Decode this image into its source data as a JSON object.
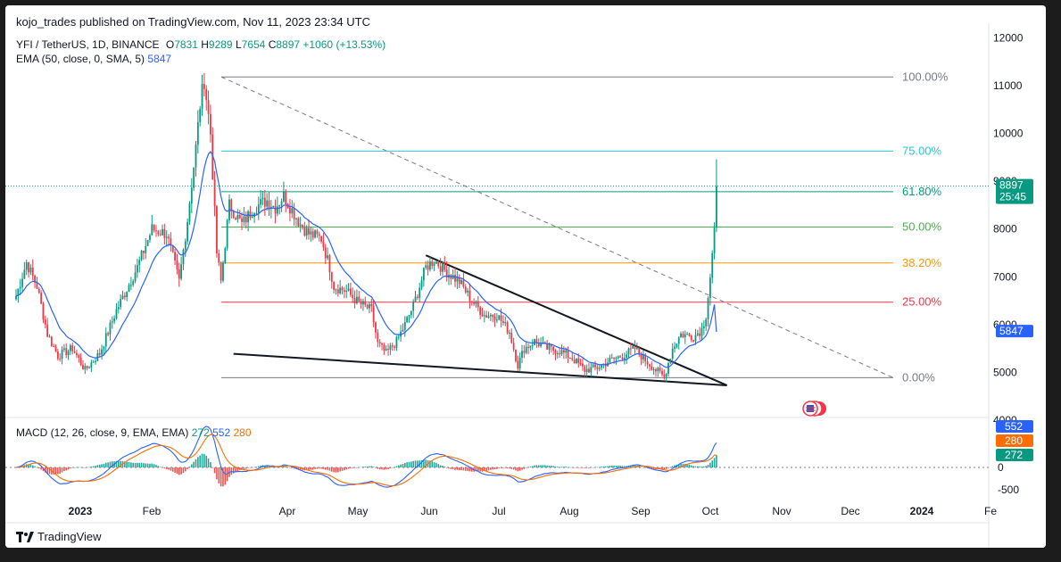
{
  "header": {
    "published": "kojo_trades published on TradingView.com, Nov 11, 2023 23:34 UTC"
  },
  "legend": {
    "symbol": "YFI / TetherUS, 1D, BINANCE",
    "o_label": "O",
    "o": "7831",
    "h_label": "H",
    "h": "9289",
    "l_label": "L",
    "l": "7654",
    "c_label": "C",
    "c": "8897",
    "change": "+1060 (+13.53%)",
    "ema_label": "EMA (50, close, 0, SMA, 5)",
    "ema_value": "5847"
  },
  "macd_legend": {
    "label": "MACD (12, 26, close, 9, EMA, EMA)",
    "hist": "272",
    "macd": "552",
    "signal": "280"
  },
  "brand": "TradingView",
  "colors": {
    "up": "#089981",
    "down": "#f23645",
    "ema": "#2962ff",
    "signal": "#ff6d00"
  },
  "chart_data": {
    "type": "candlestick",
    "title": "YFI / TetherUS, 1D, BINANCE",
    "x_tick_labels": [
      "2023",
      "Feb",
      "Apr",
      "May",
      "Jun",
      "Jul",
      "Aug",
      "Sep",
      "Oct",
      "Nov",
      "Dec",
      "2024",
      "Fe"
    ],
    "price_axis": {
      "range": [
        4000,
        12000
      ],
      "tick_labels": [
        "12000",
        "11000",
        "10000",
        "9000",
        "8000",
        "7000",
        "6000",
        "5000",
        "4000"
      ]
    },
    "macd_axis": {
      "tick_labels": [
        "0",
        "-500"
      ]
    },
    "price_markers": [
      {
        "label": "8897",
        "sub": "25:45",
        "value": 8897,
        "color": "#089981"
      },
      {
        "label": "5847",
        "value": 5847,
        "color": "#2962ff"
      }
    ],
    "macd_markers": [
      {
        "label": "552",
        "value": 552,
        "color": "#2962ff"
      },
      {
        "label": "280",
        "value": 280,
        "color": "#ff6d00"
      },
      {
        "label": "272",
        "value": 272,
        "color": "#089981"
      }
    ],
    "fib_levels": [
      {
        "label": "100.00%",
        "price": 11180,
        "color": "#787b86"
      },
      {
        "label": "75.00%",
        "price": 9630,
        "color": "#26c6da"
      },
      {
        "label": "61.80%",
        "price": 8780,
        "color": "#089981"
      },
      {
        "label": "50.00%",
        "price": 8040,
        "color": "#4caf50"
      },
      {
        "label": "38.20%",
        "price": 7290,
        "color": "#ff9800"
      },
      {
        "label": "25.00%",
        "price": 6470,
        "color": "#f23645"
      },
      {
        "label": "0.00%",
        "price": 4890,
        "color": "#787b86"
      }
    ],
    "wedge": {
      "upper": [
        {
          "t": 196,
          "price": 7450
        },
        {
          "t": 340,
          "price": 4730
        }
      ],
      "lower": [
        {
          "t": 104,
          "price": 5390
        },
        {
          "t": 340,
          "price": 4730
        }
      ]
    },
    "anchors": [
      [
        0,
        6600
      ],
      [
        5,
        7300
      ],
      [
        10,
        6800
      ],
      [
        15,
        5800
      ],
      [
        20,
        5350
      ],
      [
        27,
        5500
      ],
      [
        33,
        5050
      ],
      [
        40,
        5400
      ],
      [
        48,
        6300
      ],
      [
        58,
        7200
      ],
      [
        65,
        8000
      ],
      [
        72,
        7900
      ],
      [
        78,
        6900
      ],
      [
        82,
        8200
      ],
      [
        86,
        9700
      ],
      [
        88,
        10600
      ],
      [
        90,
        11120
      ],
      [
        93,
        10000
      ],
      [
        96,
        7500
      ],
      [
        98,
        6900
      ],
      [
        102,
        8500
      ],
      [
        108,
        8100
      ],
      [
        114,
        8450
      ],
      [
        120,
        8600
      ],
      [
        124,
        8450
      ],
      [
        128,
        8700
      ],
      [
        132,
        8400
      ],
      [
        136,
        8100
      ],
      [
        140,
        7900
      ],
      [
        146,
        7800
      ],
      [
        150,
        7200
      ],
      [
        152,
        6800
      ],
      [
        158,
        6700
      ],
      [
        164,
        6450
      ],
      [
        170,
        6300
      ],
      [
        173,
        5600
      ],
      [
        177,
        5400
      ],
      [
        182,
        5650
      ],
      [
        186,
        6000
      ],
      [
        190,
        6400
      ],
      [
        196,
        7200
      ],
      [
        200,
        7350
      ],
      [
        206,
        7100
      ],
      [
        212,
        6900
      ],
      [
        218,
        6500
      ],
      [
        224,
        6200
      ],
      [
        230,
        6200
      ],
      [
        236,
        5850
      ],
      [
        240,
        5150
      ],
      [
        243,
        5500
      ],
      [
        248,
        5650
      ],
      [
        254,
        5500
      ],
      [
        260,
        5450
      ],
      [
        266,
        5300
      ],
      [
        272,
        5050
      ],
      [
        278,
        5100
      ],
      [
        284,
        5250
      ],
      [
        290,
        5350
      ],
      [
        296,
        5500
      ],
      [
        300,
        5300
      ],
      [
        306,
        5050
      ],
      [
        310,
        4900
      ],
      [
        314,
        5500
      ],
      [
        318,
        5800
      ],
      [
        324,
        5750
      ],
      [
        328,
        5900
      ],
      [
        330,
        6200
      ],
      [
        332,
        7000
      ],
      [
        334,
        7900
      ],
      [
        335,
        8897
      ]
    ],
    "ema_value": 5847,
    "macd_value": 552,
    "signal_value": 280,
    "histogram_value": 272
  }
}
